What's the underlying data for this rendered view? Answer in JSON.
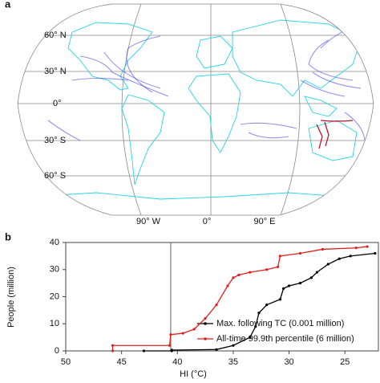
{
  "map_panel": {
    "panel_label": "a",
    "lat_labels": [
      "60° N",
      "30° N",
      "0°",
      "30° S",
      "60° S"
    ],
    "lon_labels": [
      "90° W",
      "0°",
      "90° E"
    ]
  },
  "chart_data": {
    "type": "line",
    "panel_label": "b",
    "x_label": "HI (°C)",
    "y_label": "People (million)",
    "xlim": [
      50,
      22
    ],
    "xticks": [
      50,
      45,
      40,
      35,
      30,
      25
    ],
    "ylim": [
      0,
      40
    ],
    "yticks": [
      0,
      10,
      20,
      30,
      40
    ],
    "vline": 40.6,
    "series": [
      {
        "name": "Max. following TC (0.001 million)",
        "color": "#000000",
        "x": [
          43,
          40.5,
          40.5,
          36.5,
          35,
          33.5,
          33,
          32.7,
          32,
          30.8,
          30.5,
          30,
          29,
          28,
          27.5,
          26.5,
          25.5,
          24.5,
          22.3
        ],
        "values": [
          0,
          0,
          0.3,
          0.5,
          2,
          5,
          9,
          14,
          17,
          19,
          23,
          24,
          25,
          27,
          29,
          32,
          34,
          35,
          36
        ]
      },
      {
        "name": "All-time 99.9th percentile (6 million)",
        "color": "#e0201b",
        "x": [
          45.8,
          45.8,
          40.7,
          40.6,
          39.5,
          38.5,
          37.5,
          36.5,
          35.5,
          35,
          34.5,
          33.5,
          32,
          31,
          30.8,
          29,
          27,
          24,
          23
        ],
        "values": [
          0,
          2,
          2,
          6,
          6.5,
          8,
          12,
          17,
          24,
          27,
          28,
          29,
          30,
          31,
          35,
          36,
          37.5,
          38,
          38.5
        ]
      }
    ]
  }
}
